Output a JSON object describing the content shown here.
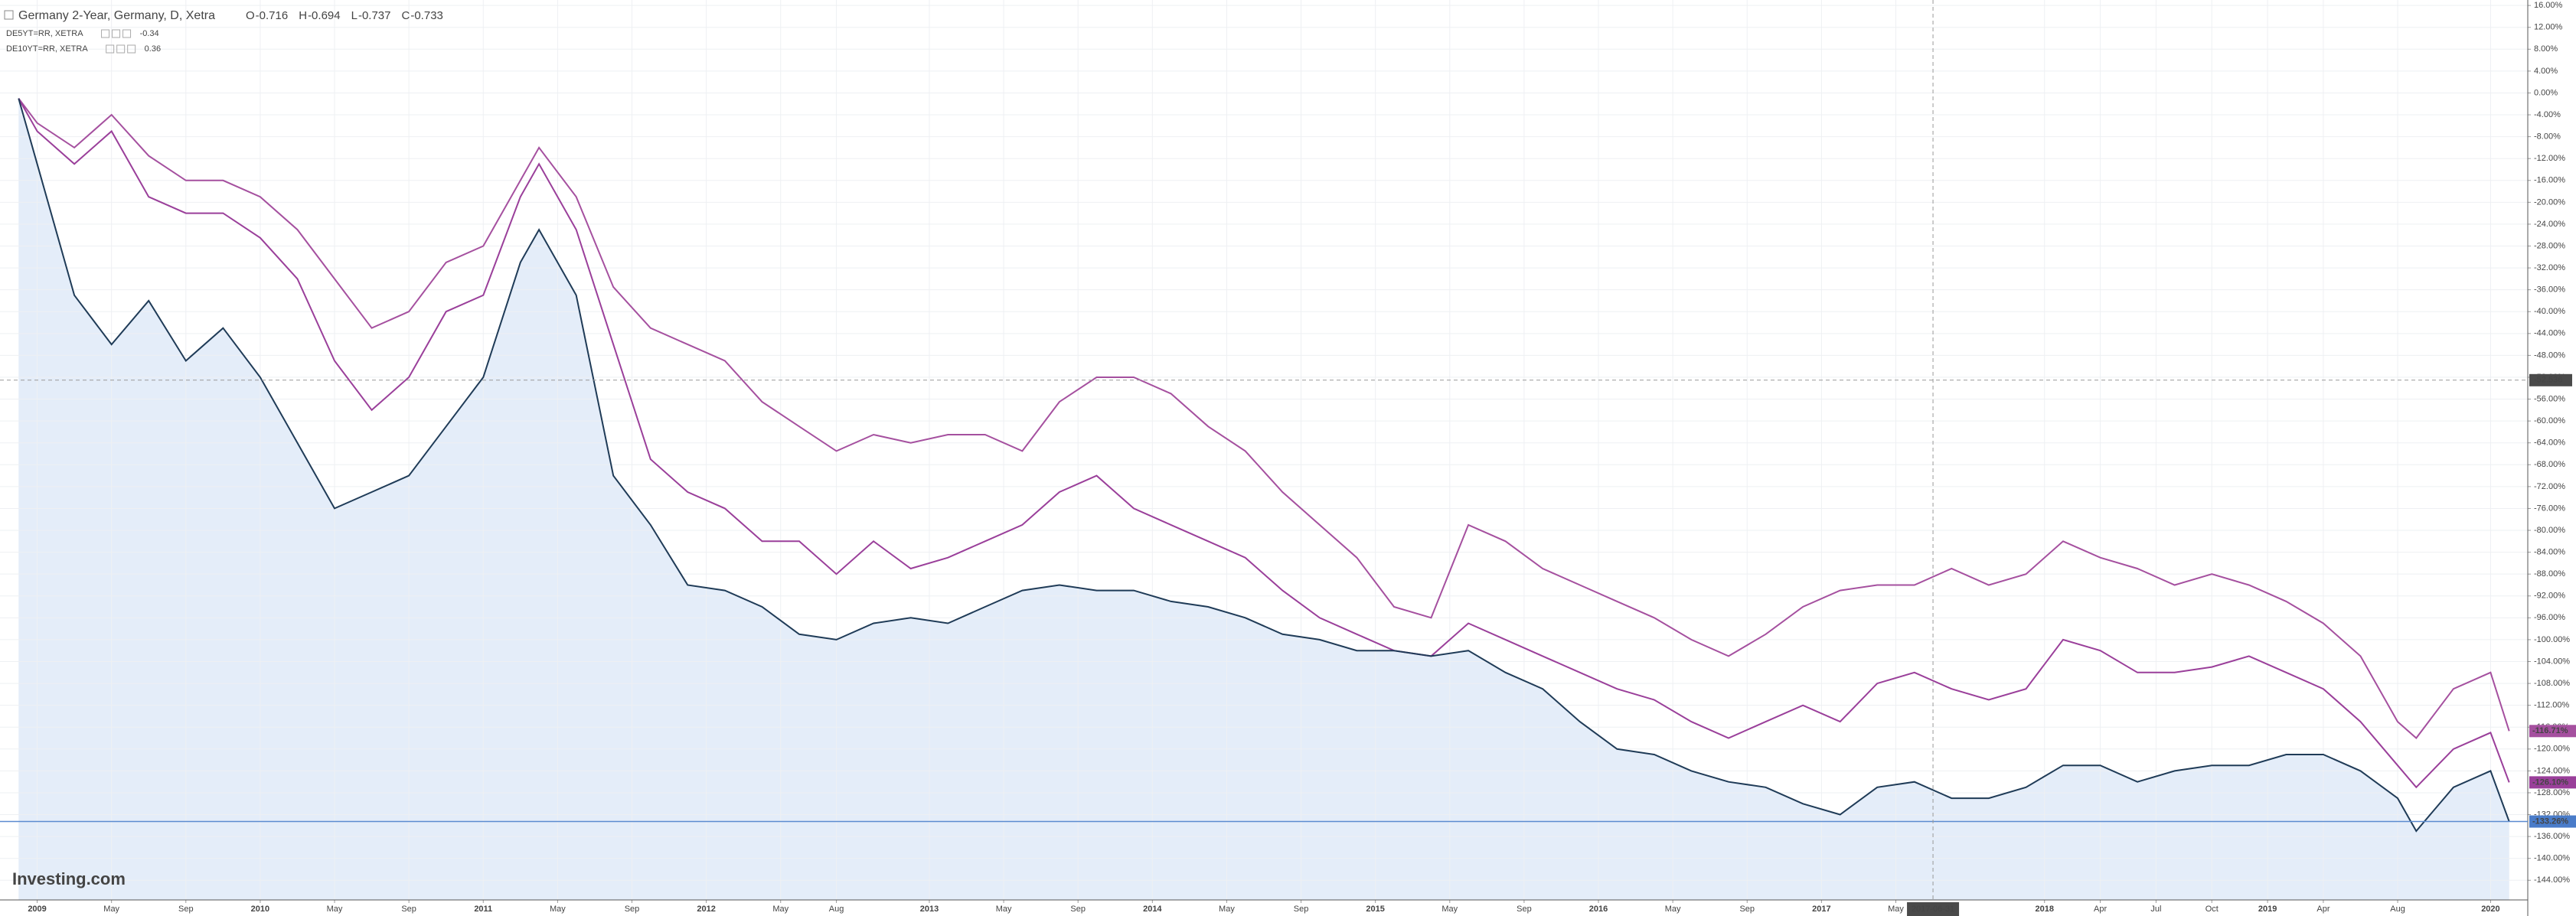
{
  "chart_data": {
    "type": "line",
    "title": "Germany 2-Year, Germany, D, Xetra",
    "ohlc": [
      {
        "label": "O",
        "value": -0.716
      },
      {
        "label": "H",
        "value": -0.694
      },
      {
        "label": "L",
        "value": -0.737
      },
      {
        "label": "C",
        "value": -0.733
      }
    ],
    "logo": "Investing.com",
    "x": [
      "2008-12",
      "2009-01",
      "2009-03",
      "2009-05",
      "2009-07",
      "2009-09",
      "2009-11",
      "2010-01",
      "2010-03",
      "2010-05",
      "2010-07",
      "2010-09",
      "2010-11",
      "2011-01",
      "2011-03",
      "2011-04",
      "2011-06",
      "2011-08",
      "2011-10",
      "2011-12",
      "2012-02",
      "2012-04",
      "2012-06",
      "2012-08",
      "2012-10",
      "2012-12",
      "2013-02",
      "2013-04",
      "2013-06",
      "2013-08",
      "2013-10",
      "2013-12",
      "2014-02",
      "2014-04",
      "2014-06",
      "2014-08",
      "2014-10",
      "2014-12",
      "2015-02",
      "2015-04",
      "2015-06",
      "2015-08",
      "2015-10",
      "2015-12",
      "2016-02",
      "2016-04",
      "2016-06",
      "2016-08",
      "2016-10",
      "2016-12",
      "2017-02",
      "2017-04",
      "2017-06",
      "2017-08",
      "2017-10",
      "2017-12",
      "2018-02",
      "2018-04",
      "2018-06",
      "2018-08",
      "2018-10",
      "2018-12",
      "2019-02",
      "2019-04",
      "2019-06",
      "2019-08",
      "2019-09",
      "2019-11",
      "2020-01",
      "2020-02"
    ],
    "series": [
      {
        "name": "Germany 2-Year",
        "color": "#1f3b57",
        "fill": "#dde9f7",
        "last_label": "-133.26%",
        "values": [
          -1,
          -13,
          -37,
          -46,
          -38,
          -49,
          -43,
          -52,
          -64,
          -76,
          -73,
          -70,
          -61,
          -52,
          -31,
          -25,
          -37,
          -70,
          -79,
          -90,
          -91,
          -94,
          -99,
          -100,
          -97,
          -96,
          -97,
          -94,
          -91,
          -90,
          -91,
          -91,
          -93,
          -94,
          -96,
          -99,
          -100,
          -102,
          -102,
          -103,
          -102,
          -106,
          -109,
          -115,
          -120,
          -121,
          -124,
          -126,
          -127,
          -130,
          -132,
          -127,
          -126,
          -129,
          -129,
          -127,
          -123,
          -123,
          -126,
          -124,
          -123,
          -123,
          -121,
          -121,
          -124,
          -129,
          -135,
          -127,
          -124,
          -133.26
        ]
      },
      {
        "name": "DE5YT=RR, XETRA",
        "legend_value": -0.34,
        "color": "#9a3f9a",
        "last_label": "-126.10%",
        "values": [
          -1,
          -7,
          -13,
          -7,
          -19,
          -22,
          -22,
          -26.5,
          -34,
          -49,
          -58,
          -52,
          -40,
          -37,
          -19,
          -13,
          -25,
          -46,
          -67,
          -73,
          -76,
          -82,
          -82,
          -88,
          -82,
          -87,
          -85,
          -82,
          -79,
          -73,
          -70,
          -76,
          -79,
          -82,
          -85,
          -91,
          -96,
          -99,
          -102,
          -103,
          -97,
          -100,
          -103,
          -106,
          -109,
          -111,
          -115,
          -118,
          -115,
          -112,
          -115,
          -108,
          -106,
          -109,
          -111,
          -109,
          -100,
          -102,
          -106,
          -106,
          -105,
          -103,
          -106,
          -109,
          -115,
          -123,
          -127,
          -120,
          -117,
          -126.1
        ]
      },
      {
        "name": "DE10YT=RR, XETRA",
        "legend_value": 0.36,
        "color": "#a5509f",
        "last_label": "-116.71%",
        "values": [
          -1,
          -5.5,
          -10,
          -4,
          -11.5,
          -16,
          -16,
          -19,
          -25,
          -34,
          -43,
          -40,
          -31,
          -28,
          -16,
          -10,
          -19,
          -35.5,
          -43,
          -46,
          -49,
          -56.5,
          -61,
          -65.5,
          -62.5,
          -64,
          -62.5,
          -62.5,
          -65.5,
          -56.5,
          -52,
          -52,
          -55,
          -61,
          -65.5,
          -73,
          -79,
          -85,
          -94,
          -96,
          -79,
          -82,
          -87,
          -90,
          -93,
          -96,
          -100,
          -103,
          -99,
          -94,
          -91,
          -90,
          -90,
          -87,
          -90,
          -88,
          -82,
          -85,
          -87,
          -90,
          -88,
          -90,
          -93,
          -97,
          -103,
          -115,
          -118,
          -109,
          -106,
          -116.71
        ]
      }
    ],
    "xlim": [
      "2008-11",
      "2020-03"
    ],
    "xticks": [
      {
        "value": "2009-01",
        "label": "2009"
      },
      {
        "value": "2009-05",
        "label": "May"
      },
      {
        "value": "2009-09",
        "label": "Sep"
      },
      {
        "value": "2010-01",
        "label": "2010"
      },
      {
        "value": "2010-05",
        "label": "May"
      },
      {
        "value": "2010-09",
        "label": "Sep"
      },
      {
        "value": "2011-01",
        "label": "2011"
      },
      {
        "value": "2011-05",
        "label": "May"
      },
      {
        "value": "2011-09",
        "label": "Sep"
      },
      {
        "value": "2012-01",
        "label": "2012"
      },
      {
        "value": "2012-05",
        "label": "May"
      },
      {
        "value": "2012-08",
        "label": "Aug"
      },
      {
        "value": "2013-01",
        "label": "2013"
      },
      {
        "value": "2013-05",
        "label": "May"
      },
      {
        "value": "2013-09",
        "label": "Sep"
      },
      {
        "value": "2014-01",
        "label": "2014"
      },
      {
        "value": "2014-05",
        "label": "May"
      },
      {
        "value": "2014-09",
        "label": "Sep"
      },
      {
        "value": "2015-01",
        "label": "2015"
      },
      {
        "value": "2015-05",
        "label": "May"
      },
      {
        "value": "2015-09",
        "label": "Sep"
      },
      {
        "value": "2016-01",
        "label": "2016"
      },
      {
        "value": "2016-05",
        "label": "May"
      },
      {
        "value": "2016-09",
        "label": "Sep"
      },
      {
        "value": "2017-01",
        "label": "2017"
      },
      {
        "value": "2017-05",
        "label": "May"
      },
      {
        "value": "2018-01",
        "label": "2018"
      },
      {
        "value": "2018-04",
        "label": "Apr"
      },
      {
        "value": "2018-07",
        "label": "Jul"
      },
      {
        "value": "2018-10",
        "label": "Oct"
      },
      {
        "value": "2019-01",
        "label": "2019"
      },
      {
        "value": "2019-04",
        "label": "Apr"
      },
      {
        "value": "2019-08",
        "label": "Aug"
      },
      {
        "value": "2020-01",
        "label": "2020"
      }
    ],
    "ylim": [
      -147.6,
      17
    ],
    "yticks": [
      {
        "value": 16,
        "label": "16.00%"
      },
      {
        "value": 12,
        "label": "12.00%"
      },
      {
        "value": 8,
        "label": "8.00%"
      },
      {
        "value": 4,
        "label": "4.00%"
      },
      {
        "value": 0,
        "label": "0.00%"
      },
      {
        "value": -4,
        "label": "-4.00%"
      },
      {
        "value": -8,
        "label": "-8.00%"
      },
      {
        "value": -12,
        "label": "-12.00%"
      },
      {
        "value": -16,
        "label": "-16.00%"
      },
      {
        "value": -20,
        "label": "-20.00%"
      },
      {
        "value": -24,
        "label": "-24.00%"
      },
      {
        "value": -28,
        "label": "-28.00%"
      },
      {
        "value": -32,
        "label": "-32.00%"
      },
      {
        "value": -36,
        "label": "-36.00%"
      },
      {
        "value": -40,
        "label": "-40.00%"
      },
      {
        "value": -44,
        "label": "-44.00%"
      },
      {
        "value": -48,
        "label": "-48.00%"
      },
      {
        "value": -52,
        "label": "-52.00%"
      },
      {
        "value": -56,
        "label": "-56.00%"
      },
      {
        "value": -60,
        "label": "-60.00%"
      },
      {
        "value": -64,
        "label": "-64.00%"
      },
      {
        "value": -68,
        "label": "-68.00%"
      },
      {
        "value": -72,
        "label": "-72.00%"
      },
      {
        "value": -76,
        "label": "-76.00%"
      },
      {
        "value": -80,
        "label": "-80.00%"
      },
      {
        "value": -84,
        "label": "-84.00%"
      },
      {
        "value": -88,
        "label": "-88.00%"
      },
      {
        "value": -92,
        "label": "-92.00%"
      },
      {
        "value": -96,
        "label": "-96.00%"
      },
      {
        "value": -100,
        "label": "-100.00%"
      },
      {
        "value": -104,
        "label": "-104.00%"
      },
      {
        "value": -108,
        "label": "-108.00%"
      },
      {
        "value": -112,
        "label": "-112.00%"
      },
      {
        "value": -116,
        "label": "-116.00%"
      },
      {
        "value": -120,
        "label": "-120.00%"
      },
      {
        "value": -124,
        "label": "-124.00%"
      },
      {
        "value": -128,
        "label": "-128.00%"
      },
      {
        "value": -132,
        "label": "-132.00%"
      },
      {
        "value": -136,
        "label": "-136.00%"
      },
      {
        "value": -140,
        "label": "-140.00%"
      },
      {
        "value": -144,
        "label": "-144.00%"
      }
    ],
    "grid": true,
    "crosshair": {
      "x_label": "2017-06-31",
      "y": -52.536
    }
  }
}
